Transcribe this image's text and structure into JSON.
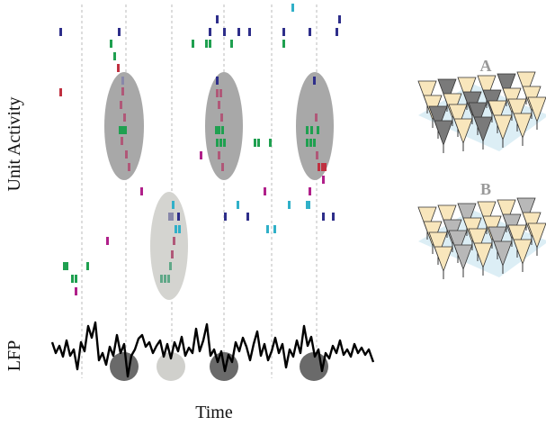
{
  "labels": {
    "units": "Unit Activity",
    "lfp": "LFP",
    "time": "Time"
  },
  "panels": [
    {
      "label": "A"
    },
    {
      "label": "B"
    }
  ]
}
